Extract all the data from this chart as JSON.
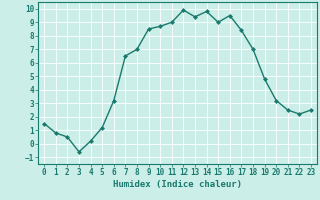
{
  "xlabel": "Humidex (Indice chaleur)",
  "ylabel": "",
  "x": [
    0,
    1,
    2,
    3,
    4,
    5,
    6,
    7,
    8,
    9,
    10,
    11,
    12,
    13,
    14,
    15,
    16,
    17,
    18,
    19,
    20,
    21,
    22,
    23
  ],
  "y": [
    1.5,
    0.8,
    0.5,
    -0.6,
    0.2,
    1.2,
    3.2,
    6.5,
    7.0,
    8.5,
    8.7,
    9.0,
    9.9,
    9.4,
    9.8,
    9.0,
    9.5,
    8.4,
    7.0,
    4.8,
    3.2,
    2.5,
    2.2,
    2.5
  ],
  "line_color": "#1a7a6e",
  "marker": "D",
  "markersize": 2.0,
  "linewidth": 1.0,
  "ylim": [
    -1.5,
    10.5
  ],
  "xlim": [
    -0.5,
    23.5
  ],
  "yticks": [
    -1,
    0,
    1,
    2,
    3,
    4,
    5,
    6,
    7,
    8,
    9,
    10
  ],
  "xticks": [
    0,
    1,
    2,
    3,
    4,
    5,
    6,
    7,
    8,
    9,
    10,
    11,
    12,
    13,
    14,
    15,
    16,
    17,
    18,
    19,
    20,
    21,
    22,
    23
  ],
  "bg_color": "#cceee8",
  "grid_color": "#ffffff",
  "tick_color": "#1a7a6e",
  "tick_labelsize": 5.5,
  "xlabel_fontsize": 6.5,
  "label_color": "#1a1a1a"
}
